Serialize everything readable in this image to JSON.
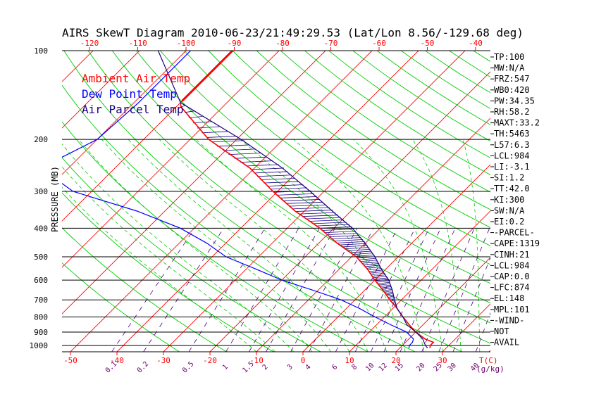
{
  "colors": {
    "ambient": "#ff0000",
    "dewpoint": "#0000ff",
    "parcel": "#1a0080",
    "isotherm": "#ff0000",
    "dry_adiabat": "#00cc00",
    "moist_adiabat": "#00cc00",
    "mixing_ratio": "#4b0082",
    "isobar": "#000000",
    "text": "#000000",
    "ticklabel": "#ff0000",
    "mixlabel": "#6a006a"
  },
  "chart_data": {
    "type": "line",
    "title": "AIRS SkewT Diagram 2010-06-23/21:49:29.53 (Lat/Lon 8.56/-129.68 deg)",
    "ylabel": "PRESSURE (MB)",
    "xlabel_bottom_unit": "T(C)",
    "mixing_ratio_unit": "(g/kg)",
    "pressure_ticks": [
      100,
      200,
      300,
      400,
      500,
      600,
      700,
      800,
      900,
      1000
    ],
    "pressure_range": [
      100,
      1050
    ],
    "temp_ticks_bottom": [
      -50,
      -40,
      -30,
      -20,
      -10,
      0,
      10,
      20,
      30
    ],
    "temp_ticks_top": [
      -120,
      -110,
      -100,
      -90,
      -80,
      -70,
      -60,
      -50,
      -40
    ],
    "mixing_ratio_labels": [
      "0.1",
      "0.2",
      "0.5",
      "1",
      "1.5",
      "2",
      "3",
      "4",
      "6",
      "8",
      "10",
      "12",
      "15",
      "20",
      "25",
      "30",
      "40"
    ],
    "legend": [
      "Ambient Air Temp",
      "Dew Point Temp",
      "Air Parcel Temp"
    ],
    "series": [
      {
        "name": "Ambient Air Temp",
        "points": [
          [
            100,
            -80
          ],
          [
            150,
            -80
          ],
          [
            155,
            -79
          ],
          [
            200,
            -66
          ],
          [
            250,
            -51
          ],
          [
            300,
            -41
          ],
          [
            350,
            -32
          ],
          [
            400,
            -23
          ],
          [
            450,
            -16
          ],
          [
            500,
            -9
          ],
          [
            550,
            -4
          ],
          [
            600,
            0
          ],
          [
            650,
            4
          ],
          [
            700,
            7.5
          ],
          [
            750,
            11
          ],
          [
            800,
            14
          ],
          [
            850,
            17
          ],
          [
            900,
            20
          ],
          [
            950,
            23.5
          ],
          [
            975,
            26
          ],
          [
            1000,
            26
          ],
          [
            1020,
            26.5
          ]
        ]
      },
      {
        "name": "Dew Point Temp",
        "points": [
          [
            100,
            -89
          ],
          [
            130,
            -89
          ],
          [
            150,
            -89
          ],
          [
            200,
            -90
          ],
          [
            250,
            -96
          ],
          [
            300,
            -84
          ],
          [
            350,
            -66
          ],
          [
            400,
            -53
          ],
          [
            450,
            -44
          ],
          [
            500,
            -37
          ],
          [
            550,
            -28
          ],
          [
            600,
            -20
          ],
          [
            650,
            -11
          ],
          [
            700,
            -3
          ],
          [
            750,
            3
          ],
          [
            800,
            8
          ],
          [
            850,
            13
          ],
          [
            900,
            18
          ],
          [
            950,
            21
          ],
          [
            975,
            21.5
          ],
          [
            1000,
            21.5
          ],
          [
            1020,
            22
          ]
        ]
      },
      {
        "name": "Air Parcel Temp",
        "points": [
          [
            100,
            -96
          ],
          [
            150,
            -80
          ],
          [
            200,
            -59
          ],
          [
            250,
            -44
          ],
          [
            300,
            -33
          ],
          [
            350,
            -24
          ],
          [
            400,
            -16
          ],
          [
            450,
            -10
          ],
          [
            500,
            -5
          ],
          [
            550,
            -1
          ],
          [
            600,
            3
          ],
          [
            650,
            6
          ],
          [
            700,
            8.5
          ],
          [
            750,
            11
          ],
          [
            800,
            14
          ],
          [
            850,
            16.5
          ],
          [
            900,
            20
          ],
          [
            950,
            23
          ],
          [
            975,
            24
          ],
          [
            1000,
            25
          ],
          [
            1020,
            26
          ]
        ]
      }
    ]
  },
  "stats": [
    "TP:100",
    "MW:N/A",
    "FRZ:547",
    "WB0:420",
    "PW:34.35",
    "RH:58.2",
    "MAXT:33.2",
    "TH:5463",
    "L57:6.3",
    "LCL:984",
    "LI:-3.1",
    "SI:1.2",
    "TT:42.0",
    "KI:300",
    "SW:N/A",
    "EI:0.2",
    "-PARCEL-",
    "CAPE:1319",
    "CINH:21",
    "LCL:984",
    "CAP:0.0",
    "LFC:874",
    "EL:148",
    "MPL:101",
    "-WIND-",
    "NOT",
    "AVAIL"
  ]
}
